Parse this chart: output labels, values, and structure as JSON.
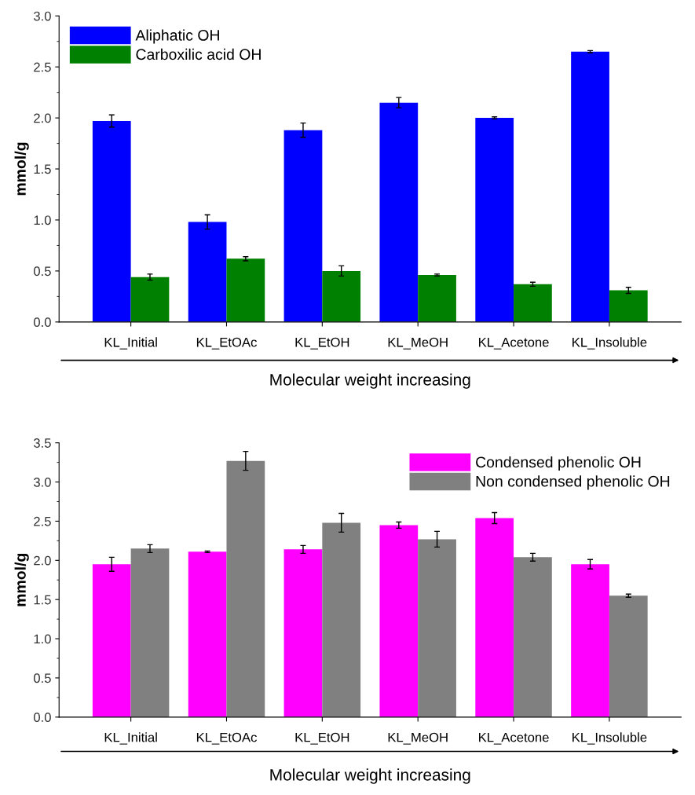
{
  "chart_data": [
    {
      "type": "bar",
      "ylabel": "mmol/g",
      "xlabel": "Molecular weight increasing",
      "categories": [
        "KL_Initial",
        "KL_EtOAc",
        "KL_EtOH",
        "KL_MeOH",
        "KL_Acetone",
        "KL_Insoluble"
      ],
      "series": [
        {
          "name": "Aliphatic OH",
          "color": "#0000ff",
          "values": [
            1.97,
            0.98,
            1.88,
            2.15,
            2.0,
            2.65
          ],
          "errors": [
            0.06,
            0.07,
            0.07,
            0.05,
            0.01,
            0.01
          ]
        },
        {
          "name": "Carboxilic acid OH",
          "color": "#008000",
          "values": [
            0.44,
            0.62,
            0.5,
            0.46,
            0.37,
            0.31
          ],
          "errors": [
            0.03,
            0.02,
            0.05,
            0.01,
            0.02,
            0.03
          ]
        }
      ],
      "ylim": [
        0,
        3.0
      ],
      "yticks": [
        {
          "value": 0,
          "label": "0.0"
        },
        0.5,
        {
          "value": 1,
          "label": "1.0"
        },
        1.5,
        {
          "value": 2,
          "label": "2.0"
        },
        2.5,
        {
          "value": 3,
          "label": "3.0"
        }
      ],
      "legend": "top left",
      "grid": false
    },
    {
      "type": "bar",
      "ylabel": "mmol/g",
      "xlabel": "Molecular weight increasing",
      "categories": [
        "KL_Initial",
        "KL_EtOAc",
        "KL_EtOH",
        "KL_MeOH",
        "KL_Acetone",
        "KL_Insoluble"
      ],
      "series": [
        {
          "name": "Condensed phenolic OH",
          "color": "#ff00ff",
          "values": [
            1.95,
            2.11,
            2.14,
            2.45,
            2.54,
            1.95
          ],
          "errors": [
            0.09,
            0.01,
            0.05,
            0.04,
            0.07,
            0.06
          ]
        },
        {
          "name": "Non condensed phenolic OH",
          "color": "#808080",
          "values": [
            2.15,
            3.27,
            2.48,
            2.27,
            2.04,
            1.55
          ],
          "errors": [
            0.05,
            0.12,
            0.12,
            0.1,
            0.05,
            0.02
          ]
        }
      ],
      "ylim": [
        0,
        3.5
      ],
      "yticks": [
        {
          "value": 0,
          "label": "0.0"
        },
        0.5,
        {
          "value": 1,
          "label": "1.0"
        },
        1.5,
        {
          "value": 2,
          "label": "2.0"
        },
        2.5,
        {
          "value": 3,
          "label": "3.0"
        },
        3.5
      ],
      "legend": "top right",
      "grid": false
    }
  ]
}
